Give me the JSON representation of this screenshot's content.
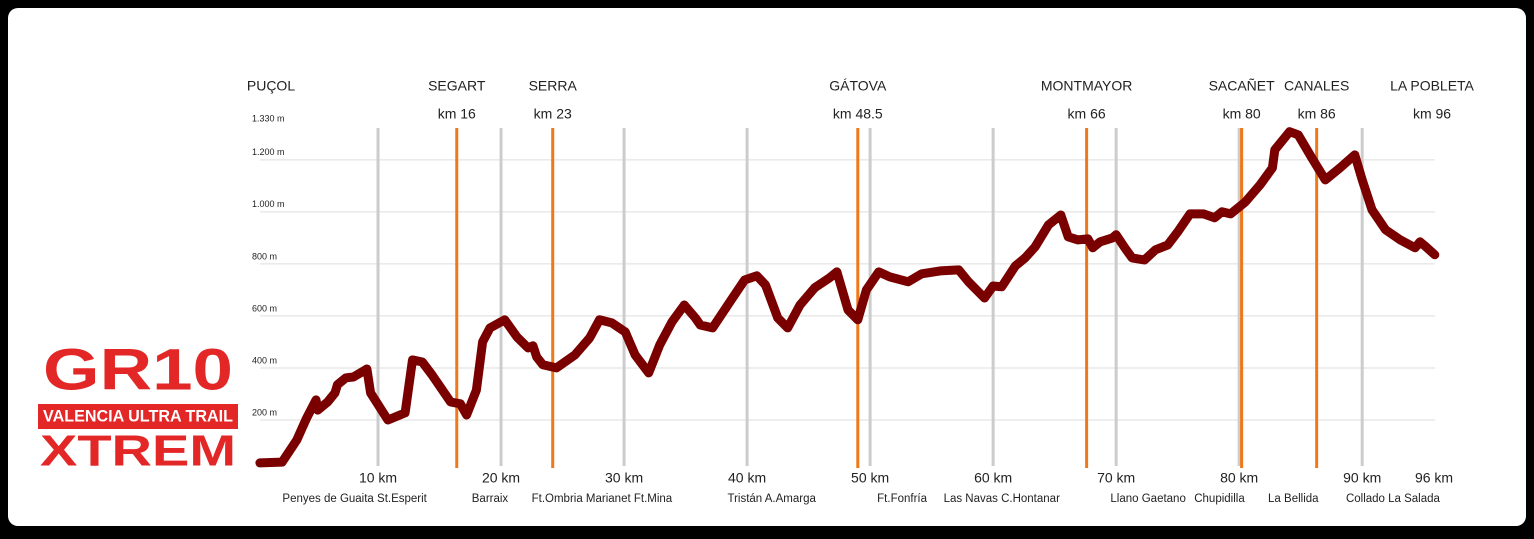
{
  "chart_data": {
    "type": "line",
    "logo": {
      "line1": "GR10",
      "line2": "VALENCIA ULTRA TRAIL",
      "line3": "XTREM"
    },
    "xlim": [
      0,
      96
    ],
    "ylim": [
      0,
      1330
    ],
    "grid": true,
    "xticks": [
      {
        "value": 10,
        "label": "10 km"
      },
      {
        "value": 20,
        "label": "20 km"
      },
      {
        "value": 30,
        "label": "30 km"
      },
      {
        "value": 40,
        "label": "40 km"
      },
      {
        "value": 50,
        "label": "50 km"
      },
      {
        "value": 60,
        "label": "60 km"
      },
      {
        "value": 70,
        "label": "70 km"
      },
      {
        "value": 80,
        "label": "80 km"
      },
      {
        "value": 90,
        "label": "90 km"
      },
      {
        "value": 96,
        "label": "96 km"
      }
    ],
    "yticks": [
      {
        "value": 200,
        "label": "200 m"
      },
      {
        "value": 400,
        "label": "400 m"
      },
      {
        "value": 600,
        "label": "600 m"
      },
      {
        "value": 800,
        "label": "800 m"
      },
      {
        "value": 1000,
        "label": "1.000 m"
      },
      {
        "value": 1200,
        "label": "1.200 m"
      },
      {
        "value": 1330,
        "label": "1.330 m"
      }
    ],
    "color": "#7a0000",
    "marker_color": "#f07818",
    "checkpoints": [
      {
        "name": "PUÇOL",
        "x": 1.3,
        "line": false
      },
      {
        "name": "SEGART",
        "km_label": "km 16",
        "x": 16.4,
        "line": true
      },
      {
        "name": "SERRA",
        "km_label": "km 23",
        "x": 24.2,
        "line": true
      },
      {
        "name": "GÁTOVA",
        "km_label": "km 48.5",
        "x": 49.0,
        "line": true
      },
      {
        "name": "MONTMAYOR",
        "km_label": "km 66",
        "x": 67.6,
        "line": true
      },
      {
        "name": "SACAÑET",
        "km_label": "km 80",
        "x": 80.2,
        "line": true
      },
      {
        "name": "CANALES",
        "km_label": "km 86",
        "x": 86.3,
        "line": true
      },
      {
        "name": "LA POBLETA",
        "km_label": "km 96",
        "x": 96,
        "line": false
      }
    ],
    "places": [
      {
        "name": "Penyes de Guaita St.Esperit",
        "x": 8.1
      },
      {
        "name": "Barraix",
        "x": 19.1
      },
      {
        "name": "Ft.Ombria Marianet Ft.Mina",
        "x": 28.2
      },
      {
        "name": "Tristán A.Amarga",
        "x": 42.0
      },
      {
        "name": "Ft.Fonfría",
        "x": 52.6
      },
      {
        "name": "Las Navas C.Hontanar",
        "x": 60.7
      },
      {
        "name": "Llano Gaetano",
        "x": 72.6
      },
      {
        "name": "Chupidilla",
        "x": 78.4
      },
      {
        "name": "La Bellida",
        "x": 84.4
      },
      {
        "name": "Collado La Salada",
        "x": 92.5
      }
    ],
    "x": [
      0.4,
      2.2,
      3.4,
      4.2,
      4.96,
      5.1,
      5.9,
      6.5,
      6.7,
      7.4,
      8.0,
      9.1,
      9.4,
      10.8,
      12.2,
      12.8,
      13.6,
      14.4,
      15.9,
      16.7,
      17.2,
      18.0,
      18.5,
      19.1,
      20.3,
      21.3,
      22.2,
      22.6,
      22.9,
      23.4,
      24.5,
      26.0,
      27.2,
      28.0,
      29.0,
      30.1,
      30.9,
      32.0,
      32.9,
      33.9,
      34.9,
      35.8,
      36.2,
      37.2,
      38.6,
      39.8,
      40.8,
      41.5,
      42.5,
      43.3,
      44.3,
      45.5,
      46.7,
      47.3,
      48.2,
      49.0,
      49.7,
      50.7,
      51.6,
      53.1,
      54.2,
      55.7,
      57.2,
      58.0,
      59.3,
      60.0,
      60.7,
      61.8,
      62.6,
      63.4,
      64.5,
      65.5,
      66.1,
      66.9,
      67.7,
      68.1,
      68.7,
      69.7,
      70.0,
      70.7,
      71.3,
      72.3,
      73.2,
      74.2,
      75.0,
      76.0,
      77.1,
      78.0,
      78.6,
      79.3,
      80.5,
      81.7,
      82.7,
      82.9,
      84.1,
      84.8,
      85.9,
      87.0,
      88.2,
      89.4,
      90.0,
      90.8,
      91.9,
      93.1,
      94.3,
      94.7,
      95.1,
      95.9
    ],
    "values": [
      35,
      38,
      123,
      208,
      277,
      238,
      269,
      304,
      335,
      362,
      365,
      396,
      304,
      200,
      227,
      431,
      423,
      373,
      269,
      262,
      219,
      315,
      500,
      554,
      585,
      519,
      477,
      485,
      442,
      412,
      400,
      450,
      515,
      585,
      573,
      538,
      450,
      381,
      488,
      577,
      642,
      592,
      565,
      554,
      654,
      738,
      754,
      719,
      592,
      554,
      642,
      708,
      746,
      769,
      623,
      585,
      700,
      769,
      750,
      731,
      762,
      773,
      777,
      731,
      669,
      715,
      712,
      792,
      823,
      865,
      950,
      988,
      904,
      892,
      896,
      862,
      885,
      900,
      912,
      862,
      823,
      815,
      854,
      873,
      923,
      992,
      992,
      977,
      1000,
      992,
      1038,
      1104,
      1169,
      1238,
      1308,
      1296,
      1208,
      1123,
      1169,
      1219,
      1123,
      1008,
      931,
      892,
      862,
      885,
      869,
      835
    ]
  }
}
